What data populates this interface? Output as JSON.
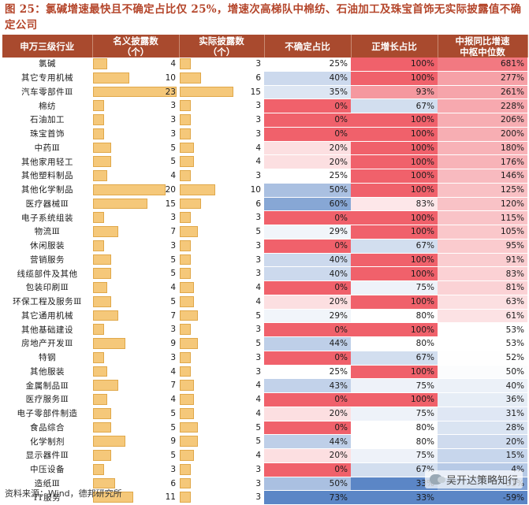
{
  "title": "图 25：氯碱增速最快且不确定占比仅 25%，增速次高梯队中棉纺、石油加工及珠宝首饰无实际披露值不确定公司",
  "headers": [
    "申万三级行业",
    "名义披露数\n（个）",
    "实际披露数\n（个）",
    "不确定占比",
    "正增长占比",
    "中报同比增速\n中枢中位数"
  ],
  "rows": [
    {
      "name": "氯碱",
      "nominal": 4,
      "actual": 3,
      "uncertain": "25%",
      "positive": "100%",
      "median": "681%"
    },
    {
      "name": "其它专用机械",
      "nominal": 10,
      "actual": 6,
      "uncertain": "40%",
      "positive": "100%",
      "median": "277%"
    },
    {
      "name": "汽车零部件Ⅲ",
      "nominal": 23,
      "actual": 15,
      "uncertain": "35%",
      "positive": "93%",
      "median": "261%"
    },
    {
      "name": "棉纺",
      "nominal": 3,
      "actual": 3,
      "uncertain": "0%",
      "positive": "67%",
      "median": "228%"
    },
    {
      "name": "石油加工",
      "nominal": 3,
      "actual": 3,
      "uncertain": "0%",
      "positive": "100%",
      "median": "206%"
    },
    {
      "name": "珠宝首饰",
      "nominal": 3,
      "actual": 3,
      "uncertain": "0%",
      "positive": "100%",
      "median": "200%"
    },
    {
      "name": "中药Ⅲ",
      "nominal": 5,
      "actual": 4,
      "uncertain": "20%",
      "positive": "100%",
      "median": "180%"
    },
    {
      "name": "其他家用轻工",
      "nominal": 5,
      "actual": 4,
      "uncertain": "20%",
      "positive": "100%",
      "median": "176%"
    },
    {
      "name": "其他塑料制品",
      "nominal": 4,
      "actual": 3,
      "uncertain": "25%",
      "positive": "100%",
      "median": "146%"
    },
    {
      "name": "其他化学制品",
      "nominal": 20,
      "actual": 10,
      "uncertain": "50%",
      "positive": "100%",
      "median": "125%"
    },
    {
      "name": "医疗器械Ⅲ",
      "nominal": 15,
      "actual": 6,
      "uncertain": "60%",
      "positive": "83%",
      "median": "120%"
    },
    {
      "name": "电子系统组装",
      "nominal": 3,
      "actual": 3,
      "uncertain": "0%",
      "positive": "100%",
      "median": "115%"
    },
    {
      "name": "物流Ⅲ",
      "nominal": 7,
      "actual": 5,
      "uncertain": "29%",
      "positive": "100%",
      "median": "105%"
    },
    {
      "name": "休闲服装",
      "nominal": 3,
      "actual": 3,
      "uncertain": "0%",
      "positive": "67%",
      "median": "95%"
    },
    {
      "name": "营销服务",
      "nominal": 5,
      "actual": 3,
      "uncertain": "40%",
      "positive": "100%",
      "median": "91%"
    },
    {
      "name": "线缆部件及其他",
      "nominal": 5,
      "actual": 3,
      "uncertain": "40%",
      "positive": "100%",
      "median": "83%"
    },
    {
      "name": "包装印刷Ⅲ",
      "nominal": 4,
      "actual": 4,
      "uncertain": "0%",
      "positive": "75%",
      "median": "81%"
    },
    {
      "name": "环保工程及服务Ⅲ",
      "nominal": 5,
      "actual": 4,
      "uncertain": "20%",
      "positive": "100%",
      "median": "63%"
    },
    {
      "name": "其它通用机械",
      "nominal": 7,
      "actual": 5,
      "uncertain": "29%",
      "positive": "80%",
      "median": "61%"
    },
    {
      "name": "其他基础建设",
      "nominal": 3,
      "actual": 3,
      "uncertain": "0%",
      "positive": "100%",
      "median": "53%"
    },
    {
      "name": "房地产开发Ⅲ",
      "nominal": 9,
      "actual": 5,
      "uncertain": "44%",
      "positive": "80%",
      "median": "53%"
    },
    {
      "name": "特钢",
      "nominal": 3,
      "actual": 3,
      "uncertain": "0%",
      "positive": "67%",
      "median": "52%"
    },
    {
      "name": "其他服装",
      "nominal": 4,
      "actual": 3,
      "uncertain": "25%",
      "positive": "100%",
      "median": "50%"
    },
    {
      "name": "金属制品Ⅲ",
      "nominal": 7,
      "actual": 4,
      "uncertain": "43%",
      "positive": "75%",
      "median": "40%"
    },
    {
      "name": "医疗服务Ⅲ",
      "nominal": 4,
      "actual": 4,
      "uncertain": "0%",
      "positive": "100%",
      "median": "36%"
    },
    {
      "name": "电子零部件制造",
      "nominal": 5,
      "actual": 4,
      "uncertain": "20%",
      "positive": "75%",
      "median": "31%"
    },
    {
      "name": "食品综合",
      "nominal": 5,
      "actual": 5,
      "uncertain": "0%",
      "positive": "80%",
      "median": "28%"
    },
    {
      "name": "化学制剂",
      "nominal": 9,
      "actual": 5,
      "uncertain": "44%",
      "positive": "80%",
      "median": "20%"
    },
    {
      "name": "显示器件Ⅲ",
      "nominal": 5,
      "actual": 4,
      "uncertain": "20%",
      "positive": "75%",
      "median": "15%"
    },
    {
      "name": "中压设备",
      "nominal": 3,
      "actual": 3,
      "uncertain": "0%",
      "positive": "67%",
      "median": "4%"
    },
    {
      "name": "造纸Ⅲ",
      "nominal": 6,
      "actual": 3,
      "uncertain": "50%",
      "positive": "33%",
      "median": "-31%"
    },
    {
      "name": "IT服务",
      "nominal": 11,
      "actual": 3,
      "uncertain": "73%",
      "positive": "33%",
      "median": "-59%"
    }
  ],
  "footer": "资料来源：Wind，德邦研究所",
  "watermark": "吴开达策略知行",
  "colors": {
    "header": "#a94a2e",
    "bar": "#f5c87a",
    "red": "#f0616b",
    "blue": "#5b86c6",
    "title": "#b4452a"
  }
}
